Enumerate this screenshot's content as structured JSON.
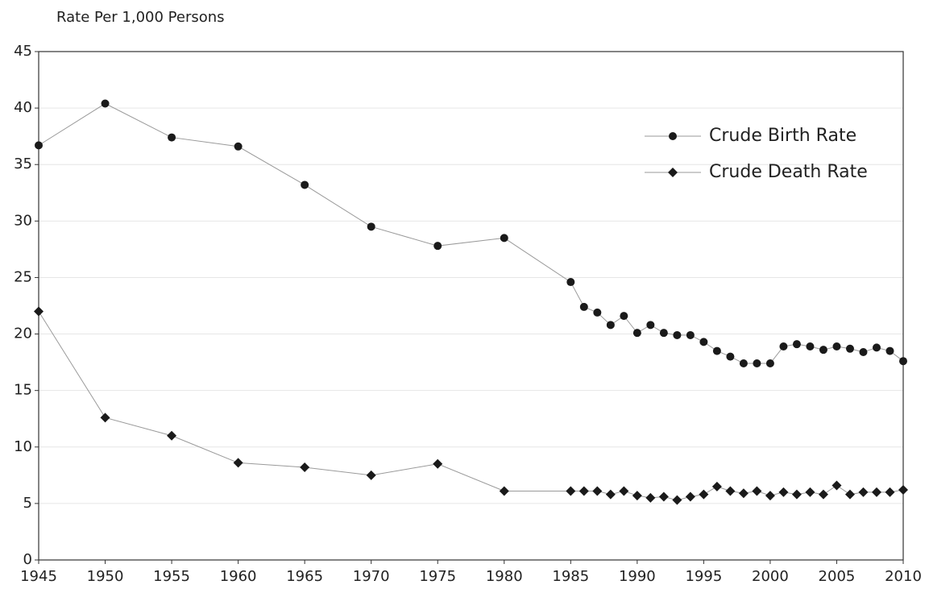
{
  "chart_data": {
    "type": "line",
    "ylabel": "Rate Per 1,000 Persons",
    "x": [
      1945,
      1950,
      1955,
      1960,
      1965,
      1970,
      1975,
      1980,
      1985,
      1986,
      1987,
      1988,
      1989,
      1990,
      1991,
      1992,
      1993,
      1994,
      1995,
      1996,
      1997,
      1998,
      1999,
      2000,
      2001,
      2002,
      2003,
      2004,
      2005,
      2006,
      2007,
      2008,
      2009,
      2010
    ],
    "series": [
      {
        "name": "Crude Birth Rate",
        "color": "#1a1a1a",
        "line_color": "#9a9a9a",
        "marker": "circle",
        "values": [
          36.7,
          40.4,
          37.4,
          36.6,
          33.2,
          29.5,
          27.8,
          28.5,
          24.6,
          22.4,
          21.9,
          20.8,
          21.6,
          20.1,
          20.8,
          20.1,
          19.9,
          19.9,
          19.3,
          18.5,
          18.0,
          17.4,
          17.4,
          17.4,
          18.9,
          19.1,
          18.9,
          18.6,
          18.9,
          18.7,
          18.4,
          18.8,
          18.5,
          17.6
        ]
      },
      {
        "name": "Crude Death Rate",
        "color": "#1a1a1a",
        "line_color": "#9a9a9a",
        "marker": "diamond",
        "values": [
          22.0,
          12.6,
          11.0,
          8.6,
          8.2,
          7.5,
          8.5,
          6.1,
          6.1,
          6.1,
          6.1,
          5.8,
          6.1,
          5.7,
          5.5,
          5.6,
          5.3,
          5.6,
          5.8,
          6.5,
          6.1,
          5.9,
          6.1,
          5.7,
          6.0,
          5.8,
          6.0,
          5.8,
          6.6,
          5.8,
          6.0,
          6.0,
          6.0,
          6.2
        ]
      }
    ],
    "xlim": [
      1945,
      2010
    ],
    "xticks": [
      1945,
      1950,
      1955,
      1960,
      1965,
      1970,
      1975,
      1980,
      1985,
      1990,
      1995,
      2000,
      2005,
      2010
    ],
    "ylim": [
      0,
      45
    ],
    "yticks": [
      0,
      5,
      10,
      15,
      20,
      25,
      30,
      35,
      40,
      45
    ],
    "grid": true,
    "legend": "upper right"
  }
}
